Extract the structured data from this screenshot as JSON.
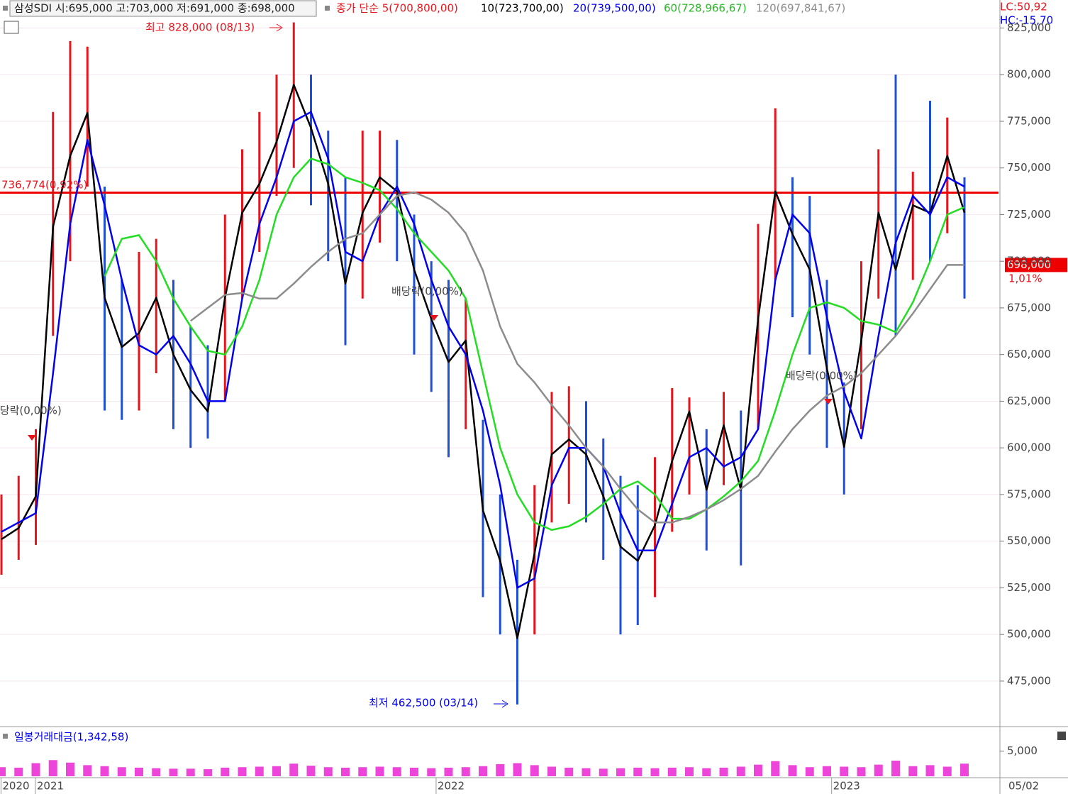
{
  "chart_data": {
    "type": "stock",
    "header": {
      "stock": "삼성SDI 시:695,000 고:703,000 저:691,000 종:698,000",
      "ma_title": "종가 단순 5(700,800,00)",
      "ma10": "10(723,700,00)",
      "ma20": "20(739,500,00)",
      "ma60": "60(728,966,67)",
      "ma120": "120(697,841,67)"
    },
    "lc": "LC:50,92",
    "hc": "HC:-15,70",
    "annotations": {
      "high": "최고 828,000 (08/13)",
      "low": "최저 462,500 (03/14)",
      "line_label": "736,774(0,92%)",
      "dividend": "배당락(0,00%)"
    },
    "ref_line": {
      "value": 736774,
      "color": "#ee0000"
    },
    "last_price": {
      "value": 698000,
      "label": "698,000"
    },
    "change_label": "1,01%",
    "categories": [
      null,
      null,
      null,
      null,
      null,
      null,
      null,
      null,
      null,
      null,
      null,
      null,
      null,
      null,
      null,
      null,
      null,
      null,
      null,
      null,
      null,
      null,
      null,
      null,
      null,
      null,
      null,
      null,
      null,
      null,
      null,
      null,
      null,
      null,
      null,
      null,
      null,
      null,
      null,
      null,
      null,
      null,
      null,
      null,
      null,
      null,
      null,
      null,
      null,
      null,
      null,
      null,
      null,
      null,
      null,
      null,
      null
    ],
    "candles": {
      "color": "#e8141b",
      "high": [
        575000,
        585000,
        610000,
        780000,
        818000,
        815000,
        740000,
        690000,
        705000,
        712000,
        690000,
        665000,
        655000,
        725000,
        760000,
        780000,
        800000,
        828000,
        800000,
        770000,
        745000,
        770000,
        770000,
        765000,
        725000,
        700000,
        690000,
        680000,
        615000,
        575000,
        540000,
        580000,
        630000,
        633000,
        625000,
        605000,
        585000,
        580000,
        595000,
        632000,
        627000,
        610000,
        630000,
        620000,
        720000,
        782000,
        745000,
        735000,
        690000,
        635000,
        700000,
        760000,
        800000,
        748000,
        786000,
        777000,
        745000
      ],
      "low": [
        532000,
        540000,
        548000,
        660000,
        700000,
        740000,
        620000,
        615000,
        620000,
        640000,
        610000,
        600000,
        605000,
        625000,
        680000,
        705000,
        735000,
        750000,
        730000,
        700000,
        655000,
        680000,
        710000,
        700000,
        650000,
        630000,
        595000,
        610000,
        520000,
        500000,
        462500,
        500000,
        560000,
        570000,
        560000,
        540000,
        500000,
        505000,
        520000,
        555000,
        575000,
        545000,
        580000,
        537000,
        610000,
        690000,
        670000,
        650000,
        600000,
        575000,
        610000,
        680000,
        660000,
        690000,
        700000,
        715000,
        680000
      ]
    },
    "series": [
      {
        "name": "5",
        "color": "#000000",
        "values": [
          551000,
          557000,
          574000,
          718500,
          756500,
          779500,
          680500,
          654000,
          661500,
          680500,
          650000,
          631000,
          619500,
          680500,
          726000,
          741500,
          764000,
          794500,
          771500,
          741500,
          688000,
          726000,
          745000,
          737500,
          695500,
          669000,
          646000,
          657500,
          566500,
          539500,
          498000,
          543500,
          596500,
          604500,
          596500,
          574000,
          547000,
          539500,
          558500,
          593000,
          619500,
          577500,
          612000,
          577500,
          669000,
          737500,
          714500,
          695500,
          642500,
          600500,
          657500,
          726000,
          695500,
          730000,
          726000,
          756500,
          726000
        ]
      },
      {
        "name": "20",
        "color": "#0000ee",
        "values": [
          555000,
          560000,
          565000,
          640000,
          720000,
          765000,
          730000,
          690000,
          655000,
          650000,
          660000,
          645000,
          625000,
          625000,
          680000,
          720000,
          745000,
          775000,
          780000,
          755000,
          705000,
          700000,
          725000,
          740000,
          720000,
          690000,
          665000,
          650000,
          620000,
          580000,
          525000,
          530000,
          580000,
          600000,
          600000,
          590000,
          565000,
          545000,
          545000,
          570000,
          595000,
          600000,
          590000,
          595000,
          610000,
          690000,
          725000,
          715000,
          670000,
          630000,
          605000,
          660000,
          710000,
          735000,
          725000,
          745000,
          740000
        ]
      },
      {
        "name": "60",
        "color": "#22dd22",
        "values": [
          null,
          null,
          null,
          null,
          null,
          null,
          692000,
          712000,
          714000,
          700000,
          680000,
          665000,
          652000,
          650000,
          665000,
          690000,
          725000,
          745000,
          755000,
          752000,
          745000,
          742000,
          738000,
          728000,
          715000,
          705000,
          695000,
          680000,
          640000,
          600000,
          575000,
          560000,
          556000,
          558000,
          563000,
          570000,
          578000,
          582000,
          575000,
          562000,
          562000,
          567000,
          574000,
          582000,
          593000,
          620000,
          650000,
          675000,
          678000,
          675000,
          668000,
          666000,
          662000,
          678000,
          700000,
          725000,
          729000
        ]
      },
      {
        "name": "120",
        "color": "#8c8c8c",
        "values": [
          null,
          null,
          null,
          null,
          null,
          null,
          null,
          null,
          null,
          null,
          null,
          668000,
          675000,
          682000,
          683000,
          680000,
          680000,
          688000,
          697000,
          705000,
          712000,
          715000,
          725000,
          735000,
          737000,
          733000,
          726000,
          715000,
          695000,
          665000,
          645000,
          635000,
          623000,
          612000,
          600000,
          590000,
          578000,
          567000,
          560000,
          560000,
          563000,
          567000,
          572000,
          578000,
          585000,
          598000,
          610000,
          620000,
          628000,
          633000,
          640000,
          650000,
          660000,
          672000,
          685000,
          698000,
          698000
        ]
      }
    ],
    "ylim": [
      451000,
      840000
    ],
    "yticks": [
      {
        "value": 475000,
        "label": "475,000"
      },
      {
        "value": 500000,
        "label": "500,000"
      },
      {
        "value": 525000,
        "label": "525,000"
      },
      {
        "value": 550000,
        "label": "550,000"
      },
      {
        "value": 575000,
        "label": "575,000"
      },
      {
        "value": 600000,
        "label": "600,000"
      },
      {
        "value": 625000,
        "label": "625,000"
      },
      {
        "value": 650000,
        "label": "650,000"
      },
      {
        "value": 675000,
        "label": "675,000"
      },
      {
        "value": 700000,
        "label": "700,000"
      },
      {
        "value": 725000,
        "label": "725,000"
      },
      {
        "value": 750000,
        "label": "750,000"
      },
      {
        "value": 775000,
        "label": "775,000"
      },
      {
        "value": 800000,
        "label": "800,000"
      },
      {
        "value": 825000,
        "label": "825,000"
      }
    ],
    "grid": true,
    "grid_color": "#f3e4ef",
    "volume": {
      "title": "일봉거래대금(1,342,58)",
      "color": "#e817d0",
      "values": [
        1800,
        1700,
        2600,
        3200,
        2700,
        2200,
        2000,
        1800,
        1700,
        1600,
        1500,
        1500,
        1400,
        1700,
        1800,
        1900,
        2000,
        2500,
        2100,
        1800,
        1700,
        1800,
        1900,
        1800,
        1700,
        1600,
        1700,
        1800,
        2000,
        2400,
        2600,
        2200,
        1900,
        1700,
        1600,
        1500,
        1600,
        1700,
        1600,
        1700,
        1800,
        1600,
        1700,
        1900,
        2300,
        3000,
        2200,
        1800,
        2000,
        1900,
        1800,
        2300,
        3100,
        2000,
        2200,
        1900,
        2500
      ],
      "ylim": [
        0,
        9000
      ],
      "yticks": [
        {
          "value": 5000,
          "label": "5,000"
        }
      ]
    },
    "xticks": [
      {
        "value": 0.8,
        "label": "2020"
      },
      {
        "value": 2.8,
        "label": "2021"
      },
      {
        "value": 26.1,
        "label": "2022"
      },
      {
        "value": 49.1,
        "label": "2023"
      }
    ],
    "date_label": "05/02"
  }
}
